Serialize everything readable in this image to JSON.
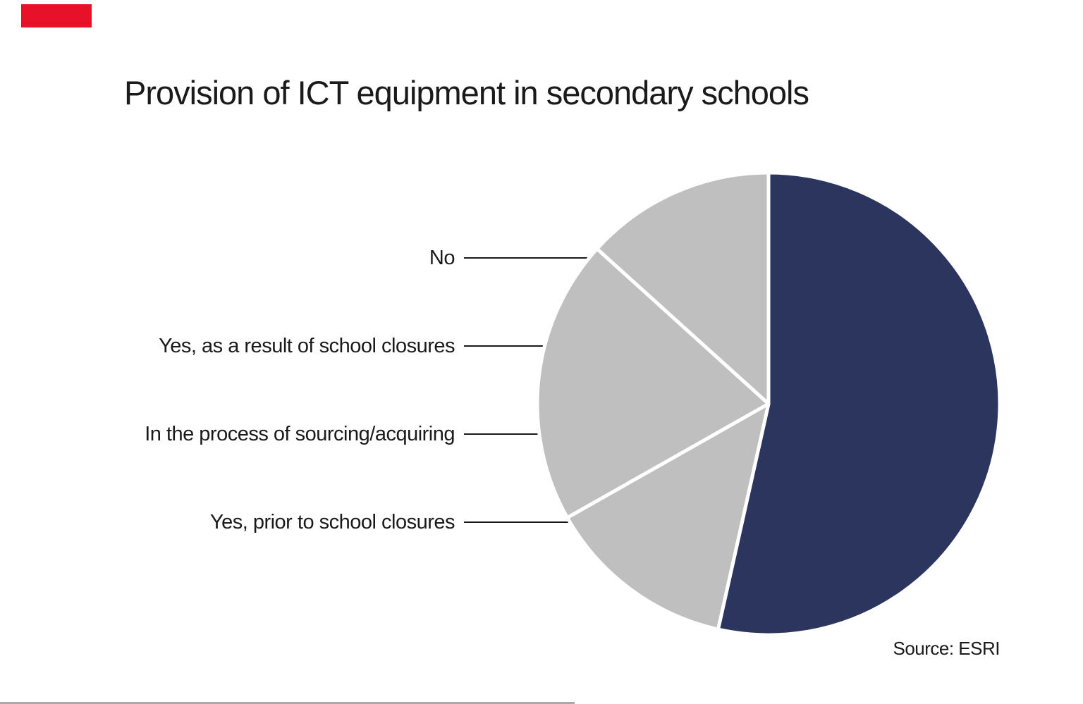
{
  "header": {
    "title": "Provision of ICT equipment in secondary schools"
  },
  "footer": {
    "source": "Source: ESRI"
  },
  "decorations": {
    "brand_red": "#e8112a",
    "bottom_rule_color": "#a9a9a9"
  },
  "colors": {
    "navy": "#2b355e",
    "gray": "#bfbfbf",
    "text": "#1a1a1a",
    "pct_on_navy": "#f7f7fa"
  },
  "chart_data": {
    "type": "pie",
    "title": "Provision of ICT equipment in secondary schools",
    "source": "Source: ESRI",
    "direction": "clockwise",
    "start_angle_deg_from_12": 0,
    "legend_position": "left-callouts",
    "slices": [
      {
        "label": "Yes, as a result of school closures",
        "value_pct": 53.5,
        "display": "53.5%",
        "color": "#2b355e",
        "pct_color": "#f7f7fa"
      },
      {
        "label": "Yes, prior to school closures",
        "value_pct": 13.3,
        "display": "13.3%",
        "color": "#bfbfbf",
        "pct_color": "#1a1a1a"
      },
      {
        "label": "In the process of sourcing/acquiring",
        "value_pct": 19.9,
        "display": "19.9%",
        "color": "#bfbfbf",
        "pct_color": "#1a1a1a"
      },
      {
        "label": "No",
        "value_pct": 13.3,
        "display": "13.3%",
        "color": "#bfbfbf",
        "pct_color": "#1a1a1a"
      }
    ]
  }
}
